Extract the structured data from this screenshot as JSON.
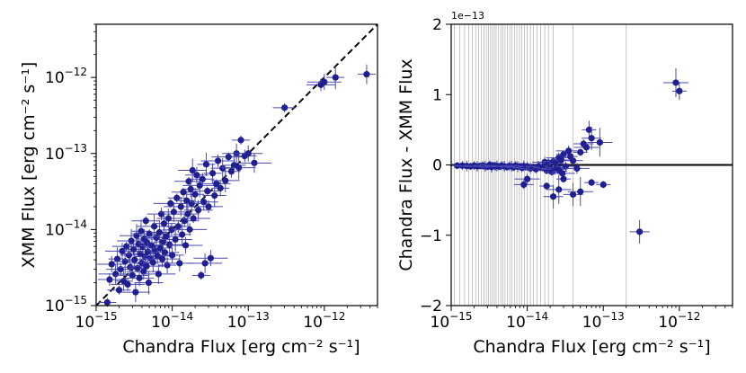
{
  "chart_data": [
    {
      "type": "scatter",
      "xlabel": "Chandra Flux [erg cm⁻² s⁻¹]",
      "ylabel": "XMM Flux [erg cm⁻² s⁻¹]",
      "xscale": "log",
      "yscale": "log",
      "xlim": [
        1e-15,
        5e-12
      ],
      "ylim": [
        1e-15,
        5e-12
      ],
      "xticks": [
        1e-15,
        1e-14,
        1e-13,
        1e-12
      ],
      "xtick_labels": [
        [
          "10",
          "−15"
        ],
        [
          "10",
          "−14"
        ],
        [
          "10",
          "−13"
        ],
        [
          "10",
          "−12"
        ]
      ],
      "yticks": [
        1e-15,
        1e-14,
        1e-13,
        1e-12
      ],
      "ytick_labels": [
        [
          "10",
          "−15"
        ],
        [
          "10",
          "−14"
        ],
        [
          "10",
          "−13"
        ],
        [
          "10",
          "−12"
        ]
      ],
      "reference_line": "y = x (dashed)",
      "grid": false,
      "point_color": "#1f1f8f",
      "points": [
        [
          1.4e-15,
          1.1e-15
        ],
        [
          1.5e-15,
          2.2e-15
        ],
        [
          1.6e-15,
          3.5e-15
        ],
        [
          1.8e-15,
          2.6e-15
        ],
        [
          1.9e-15,
          4.1e-15
        ],
        [
          2e-15,
          1.6e-15
        ],
        [
          2.1e-15,
          3e-15
        ],
        [
          2.2e-15,
          5.2e-15
        ],
        [
          2.3e-15,
          2.1e-15
        ],
        [
          2.4e-15,
          3.8e-15
        ],
        [
          2.5e-15,
          6e-15
        ],
        [
          2.6e-15,
          1.9e-15
        ],
        [
          2.7e-15,
          4.6e-15
        ],
        [
          2.8e-15,
          3.2e-15
        ],
        [
          2.9e-15,
          7.1e-15
        ],
        [
          3e-15,
          2.5e-15
        ],
        [
          3.1e-15,
          5.5e-15
        ],
        [
          3.2e-15,
          4e-15
        ],
        [
          3.3e-15,
          1.5e-15
        ],
        [
          3.4e-15,
          8.3e-15
        ],
        [
          3.5e-15,
          3.1e-15
        ],
        [
          3.6e-15,
          6.4e-15
        ],
        [
          3.7e-15,
          2.3e-15
        ],
        [
          3.8e-15,
          4.8e-15
        ],
        [
          3.9e-15,
          9.5e-15
        ],
        [
          4e-15,
          3.6e-15
        ],
        [
          4.1e-15,
          5.9e-15
        ],
        [
          4.2e-15,
          2.8e-15
        ],
        [
          4.3e-15,
          7.5e-15
        ],
        [
          4.4e-15,
          4.4e-15
        ],
        [
          4.5e-15,
          1.3e-14
        ],
        [
          4.6e-15,
          3.3e-15
        ],
        [
          4.7e-15,
          6.7e-15
        ],
        [
          4.8e-15,
          5.1e-15
        ],
        [
          4.9e-15,
          2e-15
        ],
        [
          5e-15,
          8.8e-15
        ],
        [
          5.2e-15,
          4.2e-15
        ],
        [
          5.4e-15,
          6.1e-15
        ],
        [
          5.6e-15,
          3.7e-15
        ],
        [
          5.8e-15,
          1.1e-14
        ],
        [
          6e-15,
          5.3e-15
        ],
        [
          6.2e-15,
          7.8e-15
        ],
        [
          6.4e-15,
          4.5e-15
        ],
        [
          6.6e-15,
          2.6e-15
        ],
        [
          6.8e-15,
          9.2e-15
        ],
        [
          7e-15,
          5.7e-15
        ],
        [
          7.2e-15,
          1.6e-14
        ],
        [
          7.4e-15,
          4.1e-15
        ],
        [
          7.6e-15,
          6.9e-15
        ],
        [
          7.8e-15,
          1.2e-14
        ],
        [
          8e-15,
          5e-15
        ],
        [
          8.3e-15,
          8.1e-15
        ],
        [
          8.6e-15,
          3.4e-15
        ],
        [
          8.9e-15,
          1.4e-14
        ],
        [
          9.2e-15,
          6.3e-15
        ],
        [
          9.5e-15,
          2.2e-14
        ],
        [
          9.8e-15,
          9.9e-15
        ],
        [
          1e-14,
          4.6e-15
        ],
        [
          1.05e-14,
          1.7e-14
        ],
        [
          1.1e-14,
          7.4e-15
        ],
        [
          1.15e-14,
          2.6e-14
        ],
        [
          1.2e-14,
          1.1e-14
        ],
        [
          1.25e-14,
          3.6e-15
        ],
        [
          1.3e-14,
          2e-14
        ],
        [
          1.35e-14,
          8.6e-15
        ],
        [
          1.4e-14,
          3.1e-14
        ],
        [
          1.45e-14,
          1.3e-14
        ],
        [
          1.5e-14,
          6.2e-15
        ],
        [
          1.55e-14,
          2.4e-14
        ],
        [
          1.6e-14,
          1.6e-14
        ],
        [
          1.65e-14,
          4.3e-14
        ],
        [
          1.7e-14,
          1e-14
        ],
        [
          1.75e-14,
          3.4e-14
        ],
        [
          1.8e-14,
          2.2e-14
        ],
        [
          1.85e-14,
          6e-14
        ],
        [
          1.9e-14,
          1.4e-14
        ],
        [
          2e-14,
          2.9e-14
        ],
        [
          2.1e-14,
          5.2e-14
        ],
        [
          2.2e-14,
          1.8e-14
        ],
        [
          2.3e-14,
          3.8e-14
        ],
        [
          2.4e-14,
          2.5e-15
        ],
        [
          2.5e-14,
          4.6e-14
        ],
        [
          2.6e-14,
          2.3e-14
        ],
        [
          2.7e-14,
          3.6e-15
        ],
        [
          2.8e-14,
          7.2e-14
        ],
        [
          2.9e-14,
          3.2e-14
        ],
        [
          3e-14,
          2e-14
        ],
        [
          3.2e-14,
          4.2e-15
        ],
        [
          3.4e-14,
          5.5e-14
        ],
        [
          3.6e-14,
          2.8e-14
        ],
        [
          3.8e-14,
          4e-14
        ],
        [
          4e-14,
          8e-14
        ],
        [
          4.3e-14,
          3.5e-14
        ],
        [
          4.6e-14,
          6.4e-14
        ],
        [
          5e-14,
          4.4e-14
        ],
        [
          5.5e-14,
          9e-14
        ],
        [
          6e-14,
          5.8e-14
        ],
        [
          6.5e-14,
          7e-14
        ],
        [
          7e-14,
          1e-13
        ],
        [
          7.5e-14,
          6.5e-14
        ],
        [
          8e-14,
          1.5e-13
        ],
        [
          9e-14,
          9.3e-14
        ],
        [
          1e-13,
          1e-13
        ],
        [
          1.2e-13,
          7.5e-14
        ],
        [
          1.4e-12,
          1e-12
        ],
        [
          3e-13,
          4e-13
        ],
        [
          9e-13,
          8e-13
        ],
        [
          1e-12,
          8.7e-13
        ],
        [
          3.6e-12,
          1.1e-12
        ]
      ]
    },
    {
      "type": "scatter",
      "xlabel": "Chandra Flux [erg cm⁻² s⁻¹]",
      "ylabel": "Chandra Flux - XMM Flux",
      "xscale": "log",
      "xlim": [
        1e-15,
        5e-12
      ],
      "ylim": [
        -2,
        2
      ],
      "y_offset_label": "1e−13",
      "xticks": [
        1e-15,
        1e-14,
        1e-13,
        1e-12
      ],
      "xtick_labels": [
        [
          "10",
          "−15"
        ],
        [
          "10",
          "−14"
        ],
        [
          "10",
          "−13"
        ],
        [
          "10",
          "−12"
        ]
      ],
      "yticks": [
        -2,
        -1,
        0,
        1,
        2
      ],
      "ytick_labels": [
        "−2",
        "−1",
        "0",
        "1",
        "2"
      ],
      "reference_line": "y = 0 (solid)",
      "vertical_lines": [
        1.1e-15,
        1.3e-15,
        1.5e-15,
        1.7e-15,
        1.9e-15,
        2.1e-15,
        2.3e-15,
        2.5e-15,
        2.7e-15,
        2.9e-15,
        3.1e-15,
        3.3e-15,
        3.5e-15,
        3.7e-15,
        3.9e-15,
        4.2e-15,
        4.5e-15,
        4.8e-15,
        5.1e-15,
        5.5e-15,
        5.9e-15,
        6.3e-15,
        6.8e-15,
        7.3e-15,
        7.9e-15,
        8.5e-15,
        9.2e-15,
        1e-14,
        1.1e-14,
        1.2e-14,
        1.35e-14,
        1.5e-14,
        1.7e-14,
        1.9e-14,
        2.2e-14,
        4e-14,
        2e-13
      ],
      "point_color": "#1f1f8f",
      "points": [
        [
          1.2e-15,
          -0.01
        ],
        [
          1.4e-15,
          -0.01
        ],
        [
          1.6e-15,
          -0.015
        ],
        [
          1.8e-15,
          -0.02
        ],
        [
          2e-15,
          -0.01
        ],
        [
          2.2e-15,
          -0.02
        ],
        [
          2.4e-15,
          -0.015
        ],
        [
          2.6e-15,
          -0.01
        ],
        [
          2.8e-15,
          -0.02
        ],
        [
          3e-15,
          -0.025
        ],
        [
          3.2e-15,
          0.0
        ],
        [
          3.4e-15,
          -0.03
        ],
        [
          3.6e-15,
          -0.01
        ],
        [
          3.8e-15,
          -0.02
        ],
        [
          4e-15,
          -0.015
        ],
        [
          4.3e-15,
          -0.025
        ],
        [
          4.6e-15,
          -0.01
        ],
        [
          5e-15,
          -0.02
        ],
        [
          5.4e-15,
          -0.03
        ],
        [
          5.8e-15,
          -0.015
        ],
        [
          6.2e-15,
          -0.02
        ],
        [
          6.6e-15,
          -0.035
        ],
        [
          7e-15,
          -0.01
        ],
        [
          7.5e-15,
          -0.025
        ],
        [
          8e-15,
          -0.02
        ],
        [
          8.5e-15,
          -0.04
        ],
        [
          9e-15,
          -0.015
        ],
        [
          9.5e-15,
          -0.03
        ],
        [
          1e-14,
          -0.02
        ],
        [
          1.1e-14,
          -0.05
        ],
        [
          1.2e-14,
          -0.03
        ],
        [
          1.3e-14,
          -0.06
        ],
        [
          1.4e-14,
          -0.02
        ],
        [
          1.5e-14,
          -0.04
        ],
        [
          1.6e-14,
          -0.03
        ],
        [
          1.7e-14,
          0.04
        ],
        [
          1.8e-14,
          -0.08
        ],
        [
          1.9e-14,
          0.03
        ],
        [
          2e-14,
          -0.05
        ],
        [
          2.1e-14,
          -0.1
        ],
        [
          2.2e-14,
          0.05
        ],
        [
          2.3e-14,
          -0.06
        ],
        [
          2.4e-14,
          0.02
        ],
        [
          2.5e-14,
          -0.04
        ],
        [
          2.6e-14,
          0.1
        ],
        [
          2.7e-14,
          -0.09
        ],
        [
          2.8e-14,
          0.07
        ],
        [
          2.9e-14,
          -0.12
        ],
        [
          3e-14,
          0.15
        ],
        [
          3.2e-14,
          -0.02
        ],
        [
          3.5e-14,
          0.2
        ],
        [
          3.7e-14,
          0.12
        ],
        [
          4e-14,
          0.06
        ],
        [
          4.5e-14,
          -0.05
        ],
        [
          5e-14,
          0.18
        ],
        [
          5.5e-14,
          0.3
        ],
        [
          6e-14,
          0.25
        ],
        [
          1.8e-14,
          -0.3
        ],
        [
          2.2e-14,
          -0.45
        ],
        [
          2.6e-14,
          -0.35
        ],
        [
          3e-14,
          -0.2
        ],
        [
          4e-14,
          -0.42
        ],
        [
          5e-14,
          -0.38
        ],
        [
          7e-14,
          -0.25
        ],
        [
          9e-15,
          -0.28
        ],
        [
          1e-14,
          -0.2
        ],
        [
          6.5e-14,
          0.5
        ],
        [
          7e-14,
          0.38
        ],
        [
          9e-14,
          0.32
        ],
        [
          1e-13,
          -0.28
        ],
        [
          3e-13,
          -0.95
        ],
        [
          9e-13,
          1.17
        ],
        [
          1e-12,
          1.05
        ]
      ]
    }
  ]
}
